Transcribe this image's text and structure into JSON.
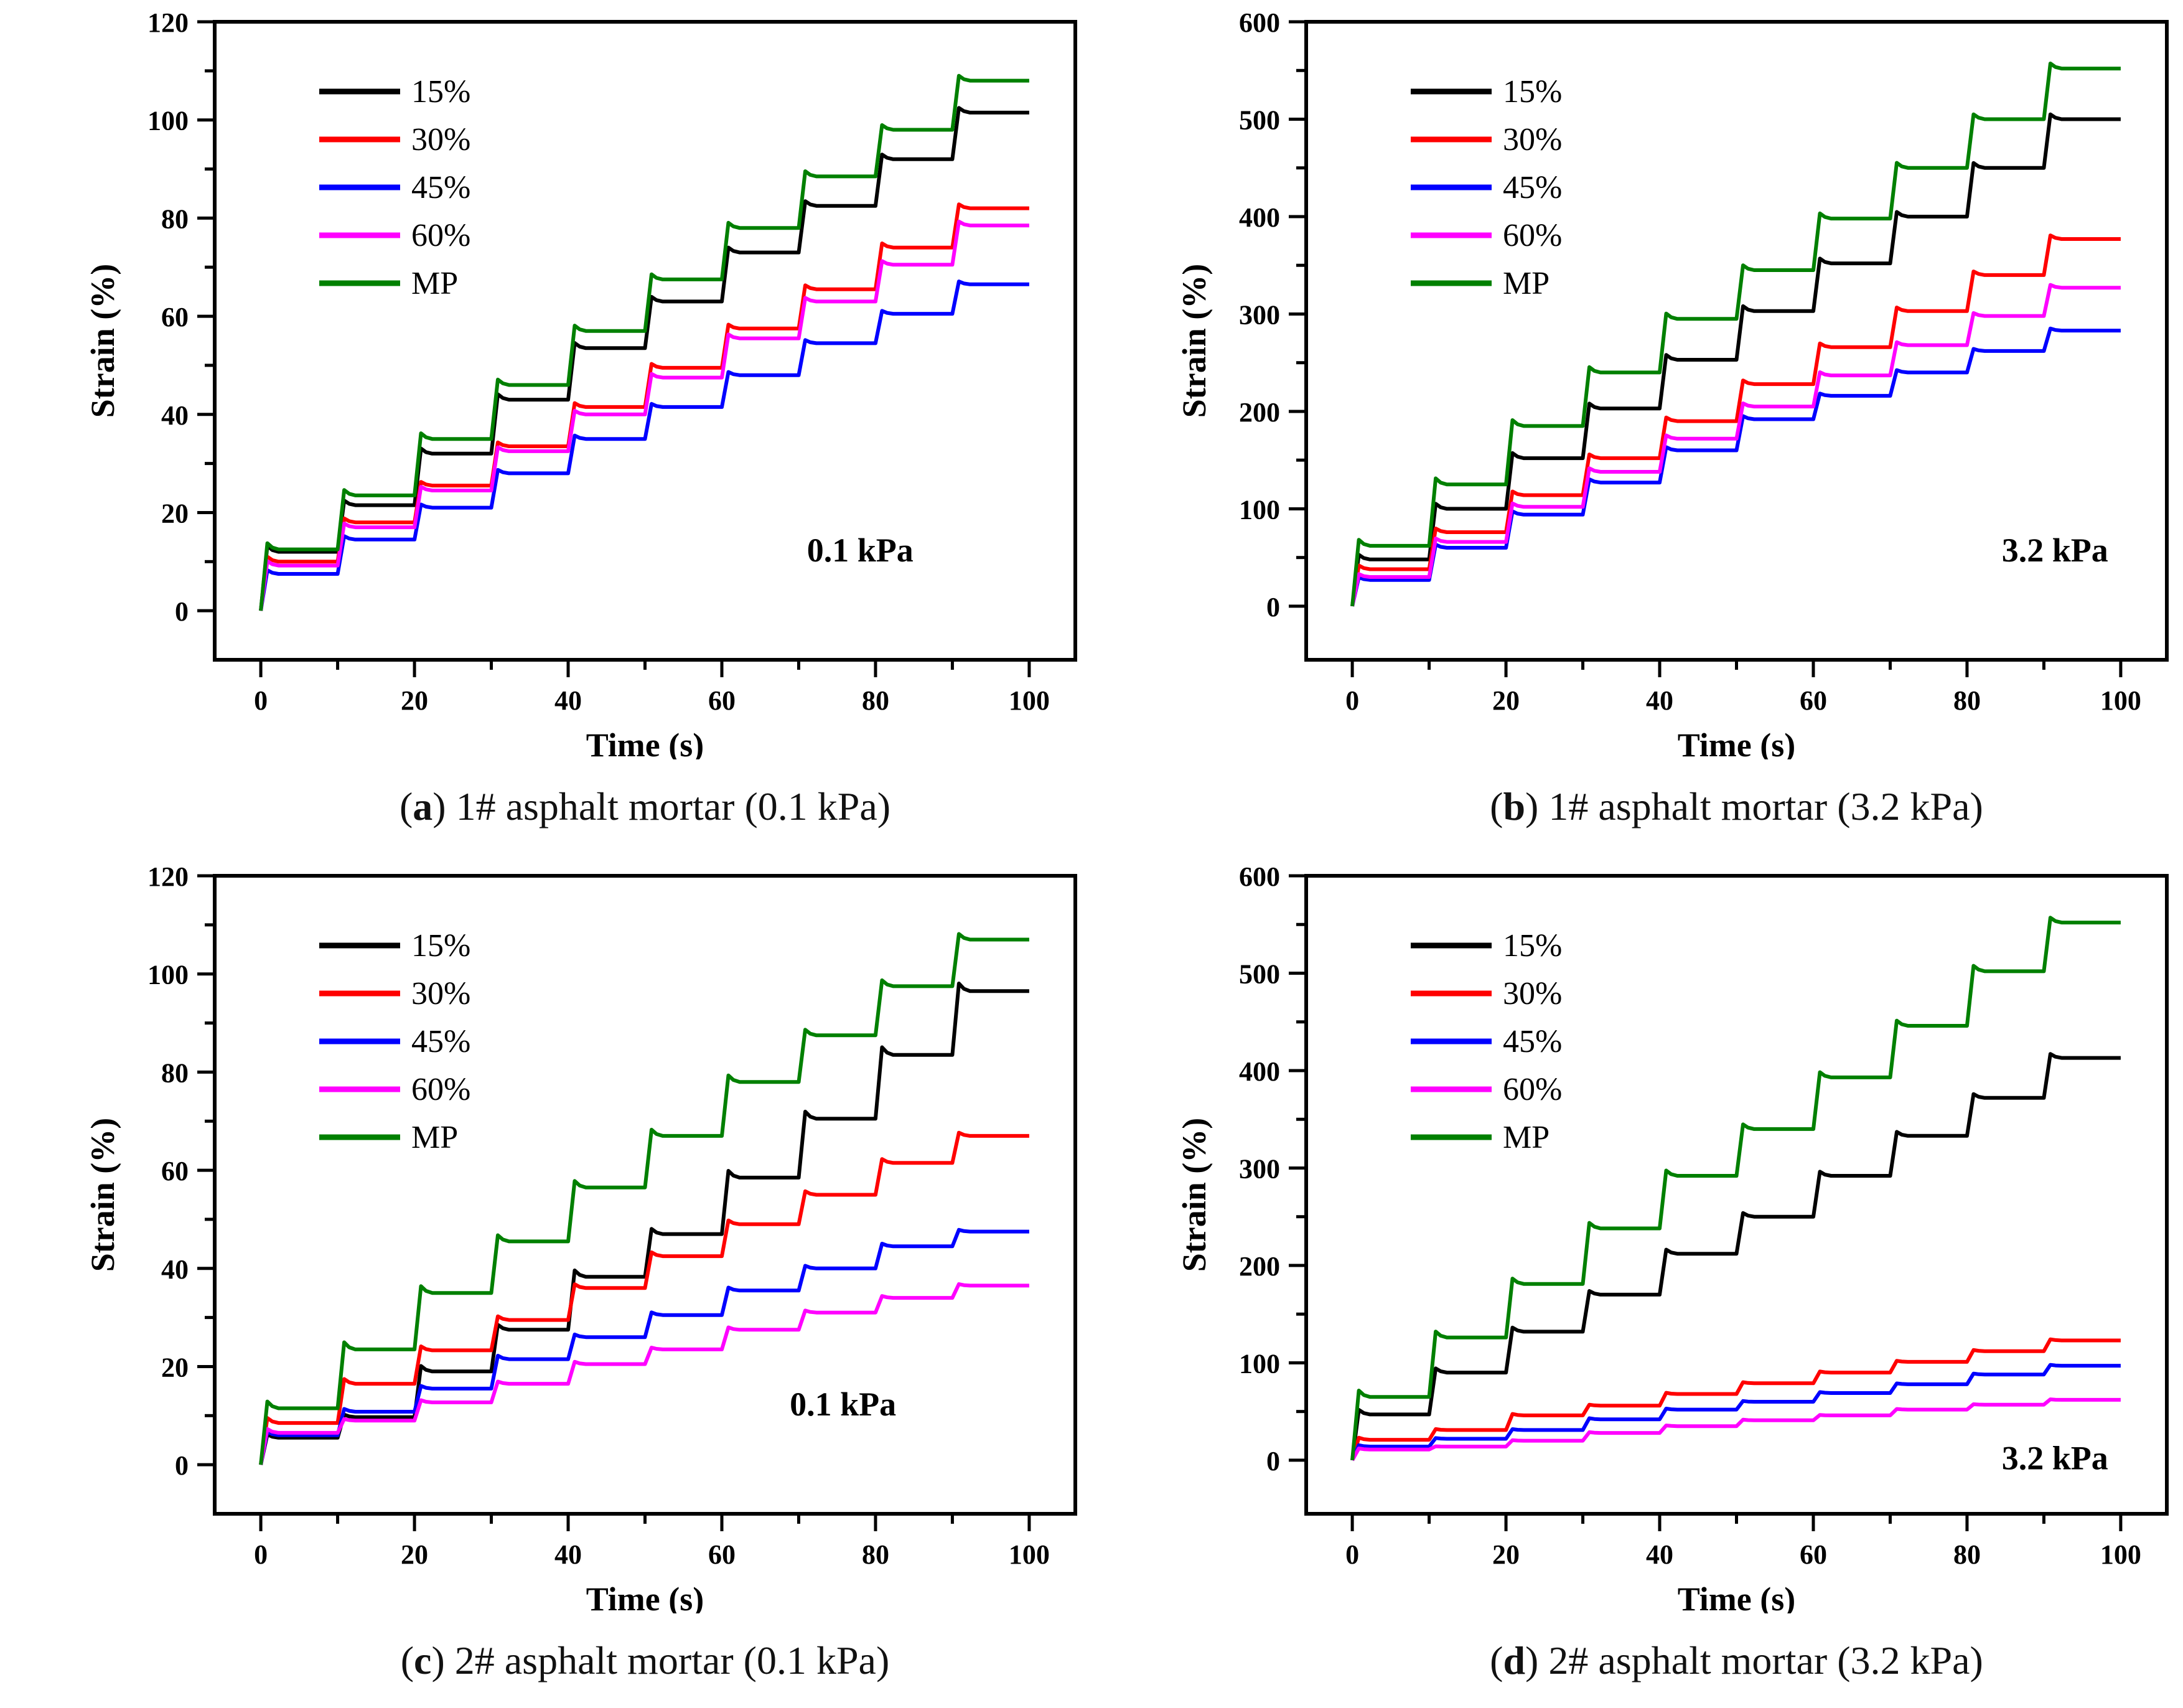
{
  "figure": {
    "description": "Staircase creep-recovery strain curves of asphalt mortars under multi-stress repeated loading",
    "stress_levels": [
      "15%",
      "30%",
      "45%",
      "60%",
      "MP"
    ],
    "colors": {
      "15%": "#000000",
      "30%": "#ff0000",
      "45%": "#0000ff",
      "60%": "#ff00ff",
      "MP": "#008000"
    }
  },
  "chart_data": [
    {
      "key": "a",
      "type": "line",
      "caption_open": "(",
      "caption_letter": "a",
      "caption_rest": ") 1# asphalt mortar (0.1 kPa)",
      "annotation": "0.1 kPa",
      "annotation_fx": 0.75,
      "annotation_fy": 0.846,
      "xlabel": "Time (s)",
      "ylabel": "Strain (%)",
      "xlim": [
        0,
        100
      ],
      "ylim": [
        0,
        120
      ],
      "xlim_draw": [
        -6,
        106
      ],
      "ylim_draw": [
        -10,
        120
      ],
      "x_ticks_major": [
        0,
        20,
        40,
        60,
        80,
        100
      ],
      "x_ticks_minor": [
        10,
        30,
        50,
        70,
        90
      ],
      "y_ticks_major": [
        0,
        20,
        40,
        60,
        80,
        100,
        120
      ],
      "y_ticks_minor": [
        10,
        30,
        50,
        70,
        90,
        110
      ],
      "grid": false,
      "legend_position": "upper-left-inside",
      "cycle_seconds": 10,
      "rise_seconds": 0.85,
      "overshoot_fraction": 0.1,
      "series": [
        {
          "name": "15%",
          "color": "#000000",
          "plateaus": [
            12,
            21.5,
            32,
            43,
            53.5,
            63,
            73,
            82.5,
            92,
            101.5
          ]
        },
        {
          "name": "30%",
          "color": "#ff0000",
          "plateaus": [
            10,
            18,
            25.5,
            33.5,
            41.5,
            49.5,
            57.5,
            65.5,
            74,
            82
          ]
        },
        {
          "name": "45%",
          "color": "#0000ff",
          "plateaus": [
            7.5,
            14.5,
            21,
            28,
            35,
            41.5,
            48,
            54.5,
            60.5,
            66.5
          ]
        },
        {
          "name": "60%",
          "color": "#ff00ff",
          "plateaus": [
            9.2,
            17,
            24.5,
            32.5,
            40,
            47.5,
            55.5,
            63,
            70.5,
            78.5
          ]
        },
        {
          "name": "MP",
          "color": "#008000",
          "plateaus": [
            12.5,
            23.5,
            35,
            46,
            57,
            67.5,
            78,
            88.5,
            98,
            108
          ]
        }
      ]
    },
    {
      "key": "b",
      "type": "line",
      "caption_open": "(",
      "caption_letter": "b",
      "caption_rest": ") 1# asphalt mortar (3.2 kPa)",
      "annotation": "3.2 kPa",
      "annotation_fx": 0.87,
      "annotation_fy": 0.846,
      "xlabel": "Time (s)",
      "ylabel": "Strain (%)",
      "xlim": [
        0,
        100
      ],
      "ylim": [
        0,
        600
      ],
      "xlim_draw": [
        -6,
        106
      ],
      "ylim_draw": [
        -55,
        600
      ],
      "x_ticks_major": [
        0,
        20,
        40,
        60,
        80,
        100
      ],
      "x_ticks_minor": [
        10,
        30,
        50,
        70,
        90
      ],
      "y_ticks_major": [
        0,
        100,
        200,
        300,
        400,
        500,
        600
      ],
      "y_ticks_minor": [
        50,
        150,
        250,
        350,
        450,
        550
      ],
      "grid": false,
      "legend_position": "upper-left-inside",
      "cycle_seconds": 10,
      "rise_seconds": 0.85,
      "overshoot_fraction": 0.1,
      "series": [
        {
          "name": "15%",
          "color": "#000000",
          "plateaus": [
            48,
            100,
            152,
            203,
            253,
            303,
            352,
            400,
            450,
            500
          ]
        },
        {
          "name": "30%",
          "color": "#ff0000",
          "plateaus": [
            38,
            76,
            114,
            152,
            190,
            228,
            266,
            303,
            340,
            377
          ]
        },
        {
          "name": "45%",
          "color": "#0000ff",
          "plateaus": [
            27,
            60,
            94,
            127,
            160,
            192,
            216,
            240,
            262,
            283
          ]
        },
        {
          "name": "60%",
          "color": "#ff00ff",
          "plateaus": [
            30,
            66,
            102,
            138,
            172,
            205,
            237,
            268,
            298,
            327
          ]
        },
        {
          "name": "MP",
          "color": "#008000",
          "plateaus": [
            62,
            125,
            185,
            240,
            295,
            345,
            398,
            450,
            500,
            552
          ]
        }
      ]
    },
    {
      "key": "c",
      "type": "line",
      "caption_open": "(",
      "caption_letter": "c",
      "caption_rest": ") 2# asphalt mortar (0.1 kPa)",
      "annotation": "0.1 kPa",
      "annotation_fx": 0.73,
      "annotation_fy": 0.846,
      "xlabel": "Time (s)",
      "ylabel": "Strain (%)",
      "xlim": [
        0,
        100
      ],
      "ylim": [
        0,
        120
      ],
      "xlim_draw": [
        -6,
        106
      ],
      "ylim_draw": [
        -10,
        120
      ],
      "x_ticks_major": [
        0,
        20,
        40,
        60,
        80,
        100
      ],
      "x_ticks_minor": [
        10,
        30,
        50,
        70,
        90
      ],
      "y_ticks_major": [
        0,
        20,
        40,
        60,
        80,
        100,
        120
      ],
      "y_ticks_minor": [
        10,
        30,
        50,
        70,
        90,
        110
      ],
      "grid": false,
      "legend_position": "upper-left-inside",
      "cycle_seconds": 10,
      "rise_seconds": 0.85,
      "overshoot_fraction": 0.12,
      "series": [
        {
          "name": "15%",
          "color": "#000000",
          "plateaus": [
            5.5,
            9.7,
            19,
            27.5,
            38.3,
            47,
            58.5,
            70.5,
            83.5,
            96.5
          ]
        },
        {
          "name": "30%",
          "color": "#ff0000",
          "plateaus": [
            8.5,
            16.5,
            23.3,
            29.5,
            36,
            42.5,
            49,
            55,
            61.5,
            67
          ]
        },
        {
          "name": "45%",
          "color": "#0000ff",
          "plateaus": [
            6,
            10.8,
            15.5,
            21.5,
            26,
            30.5,
            35.5,
            40,
            44.5,
            47.5
          ]
        },
        {
          "name": "60%",
          "color": "#ff00ff",
          "plateaus": [
            6.5,
            9,
            12.7,
            16.5,
            20.5,
            23.5,
            27.5,
            31,
            34,
            36.5
          ]
        },
        {
          "name": "MP",
          "color": "#008000",
          "plateaus": [
            11.5,
            23.5,
            35,
            45.5,
            56.5,
            67,
            78,
            87.5,
            97.5,
            107
          ]
        }
      ]
    },
    {
      "key": "d",
      "type": "line",
      "caption_open": "(",
      "caption_letter": "d",
      "caption_rest": ") 2# asphalt mortar (3.2 kPa)",
      "annotation": "3.2 kPa",
      "annotation_fx": 0.87,
      "annotation_fy": 0.93,
      "xlabel": "Time (s)",
      "ylabel": "Strain (%)",
      "xlim": [
        0,
        100
      ],
      "ylim": [
        0,
        600
      ],
      "xlim_draw": [
        -6,
        106
      ],
      "ylim_draw": [
        -55,
        600
      ],
      "x_ticks_major": [
        0,
        20,
        40,
        60,
        80,
        100
      ],
      "x_ticks_minor": [
        10,
        30,
        50,
        70,
        90
      ],
      "y_ticks_major": [
        0,
        100,
        200,
        300,
        400,
        500,
        600
      ],
      "y_ticks_minor": [
        50,
        150,
        250,
        350,
        450,
        550
      ],
      "grid": false,
      "legend_position": "upper-left-inside",
      "cycle_seconds": 10,
      "rise_seconds": 0.85,
      "overshoot_fraction": 0.1,
      "series": [
        {
          "name": "15%",
          "color": "#000000",
          "plateaus": [
            47,
            90,
            132,
            170,
            212,
            250,
            292,
            333,
            372,
            413
          ]
        },
        {
          "name": "30%",
          "color": "#ff0000",
          "plateaus": [
            21,
            31,
            46,
            56,
            68,
            79,
            90,
            101,
            112,
            123
          ]
        },
        {
          "name": "45%",
          "color": "#0000ff",
          "plateaus": [
            14,
            22,
            31,
            42,
            52,
            60,
            69,
            78,
            88,
            97
          ]
        },
        {
          "name": "60%",
          "color": "#ff00ff",
          "plateaus": [
            11,
            14,
            20,
            28,
            35,
            41,
            46,
            52,
            57,
            62
          ]
        },
        {
          "name": "MP",
          "color": "#008000",
          "plateaus": [
            65,
            126,
            181,
            238,
            292,
            340,
            393,
            446,
            502,
            552
          ]
        }
      ]
    }
  ]
}
